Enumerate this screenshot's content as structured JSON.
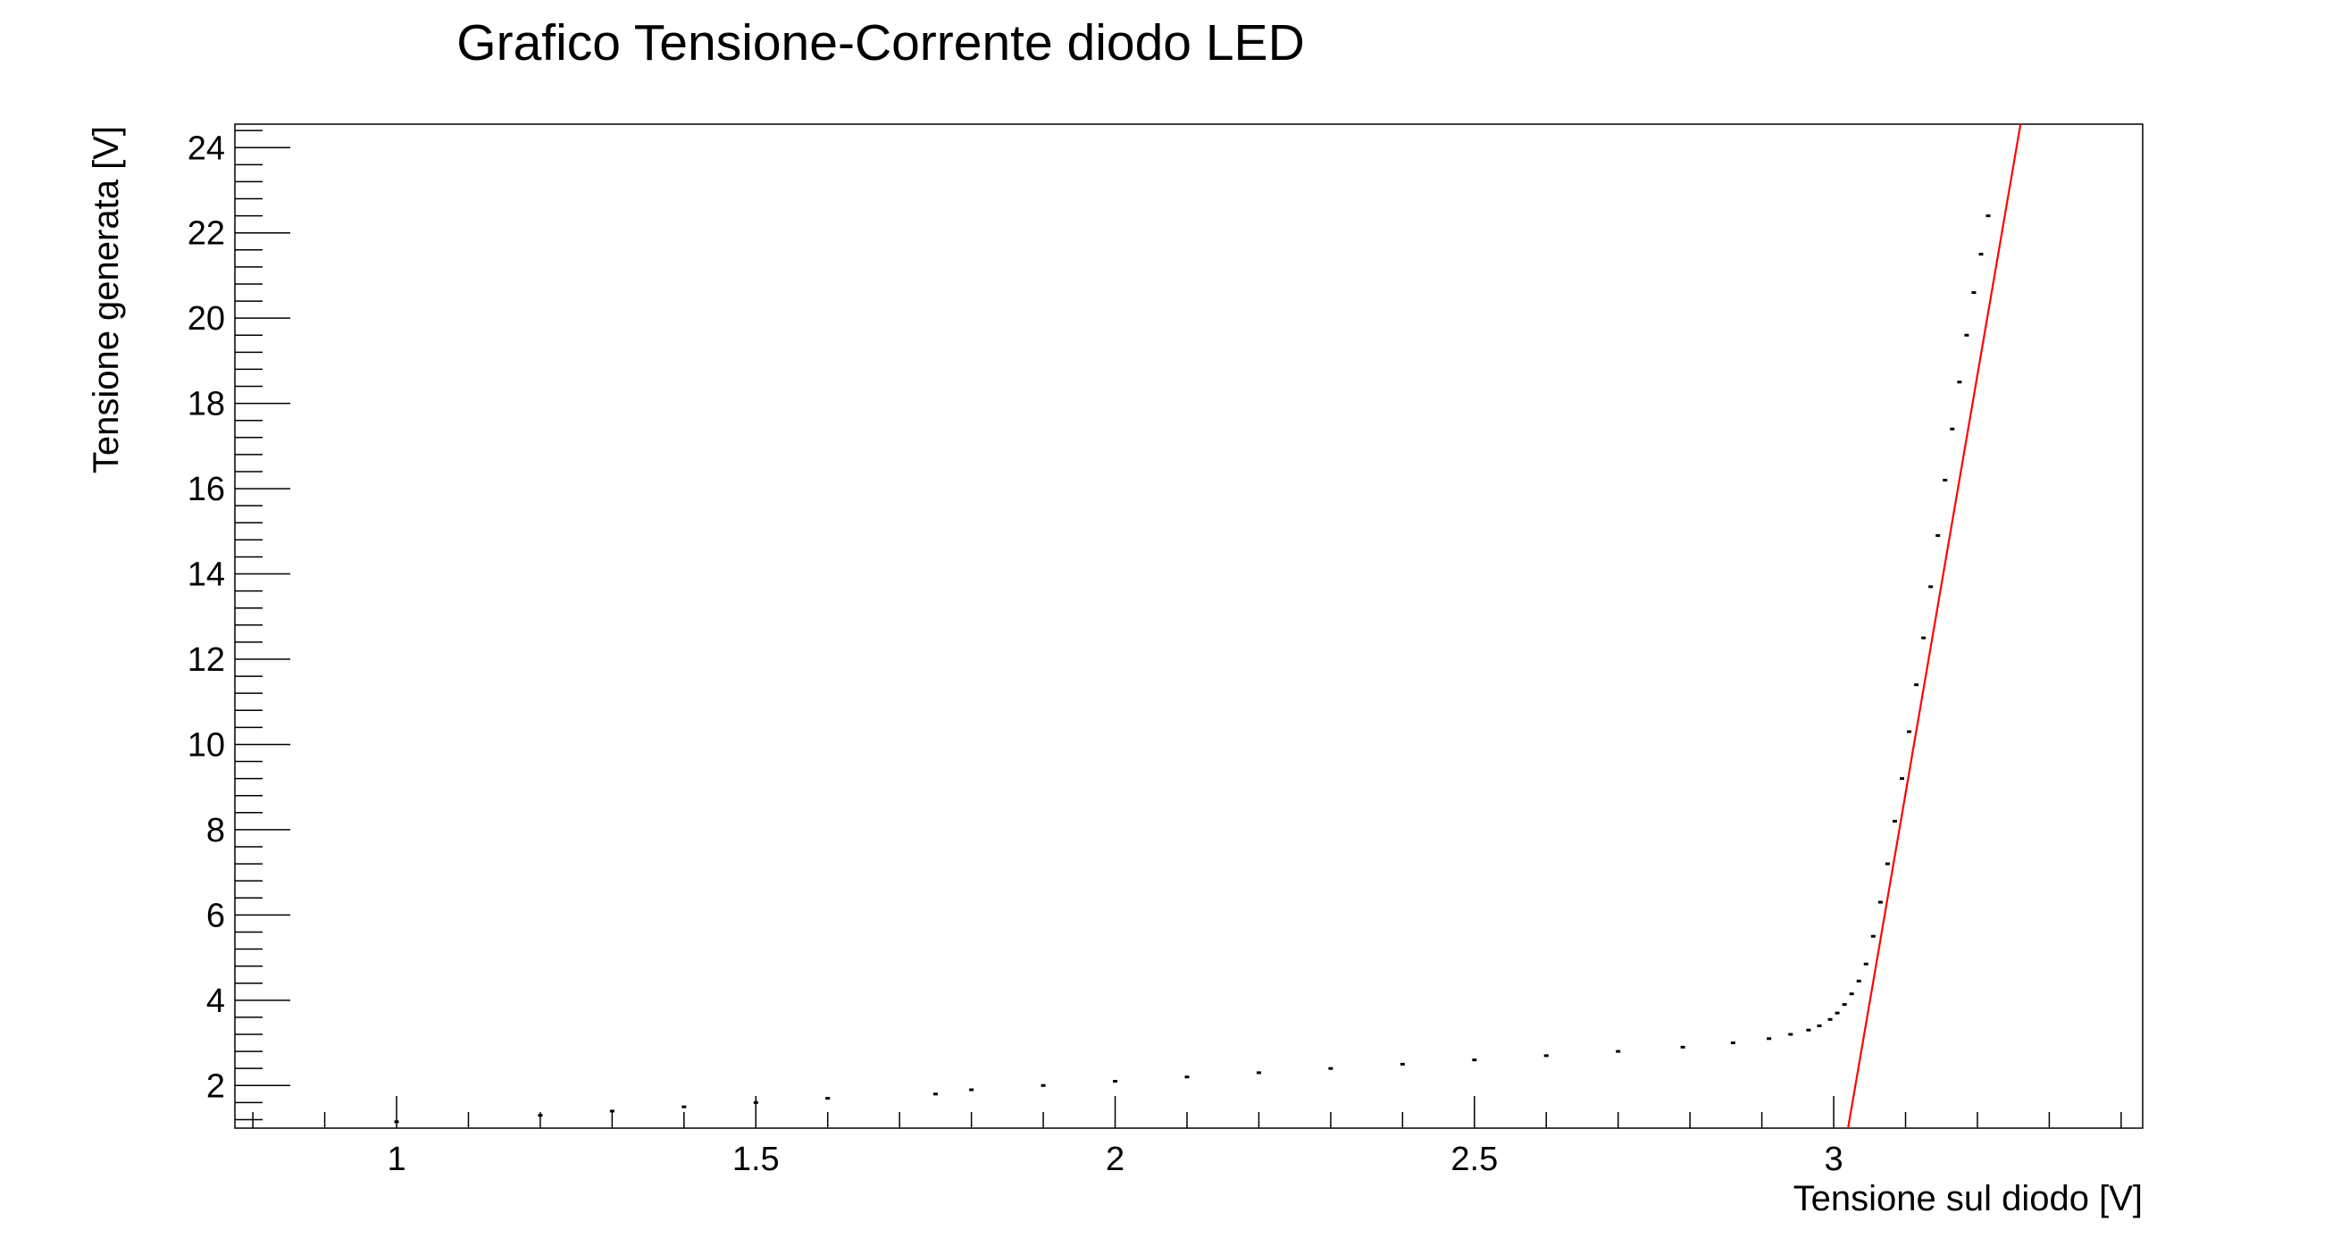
{
  "chart_data": {
    "type": "scatter",
    "title": "Grafico Tensione-Corrente diodo LED",
    "xlabel": "Tensione sul diodo [V]",
    "ylabel": "Tensione generata [V]",
    "xlim": [
      0.775,
      3.43
    ],
    "ylim": [
      1.0,
      24.55
    ],
    "x_ticks": [
      1,
      1.5,
      2,
      2.5,
      3
    ],
    "x_tick_labels": [
      "1",
      "1.5",
      "2",
      "2.5",
      "3"
    ],
    "y_ticks": [
      2,
      4,
      6,
      8,
      10,
      12,
      14,
      16,
      18,
      20,
      22,
      24
    ],
    "y_tick_labels": [
      "2",
      "4",
      "6",
      "8",
      "10",
      "12",
      "14",
      "16",
      "18",
      "20",
      "22",
      "24"
    ],
    "grid": false,
    "legend": "none",
    "series": [
      {
        "kind": "points",
        "color": "#000000",
        "x": [
          1.0,
          1.2,
          1.3,
          1.4,
          1.5,
          1.6,
          1.75,
          1.8,
          1.9,
          2.0,
          2.1,
          2.2,
          2.3,
          2.4,
          2.5,
          2.6,
          2.7,
          2.79,
          2.86,
          2.91,
          2.94,
          2.965,
          2.98,
          2.995,
          3.005,
          3.015,
          3.025,
          3.035,
          3.045,
          3.055,
          3.065,
          3.075,
          3.085,
          3.095,
          3.105,
          3.115,
          3.125,
          3.135,
          3.145,
          3.155,
          3.165,
          3.175,
          3.185,
          3.195,
          3.205,
          3.215
        ],
        "y": [
          1.15,
          1.3,
          1.4,
          1.5,
          1.6,
          1.7,
          1.8,
          1.9,
          2.0,
          2.1,
          2.2,
          2.3,
          2.4,
          2.5,
          2.6,
          2.7,
          2.8,
          2.9,
          3.0,
          3.1,
          3.2,
          3.3,
          3.4,
          3.55,
          3.7,
          3.9,
          4.15,
          4.45,
          4.85,
          5.5,
          6.3,
          7.2,
          8.2,
          9.2,
          10.3,
          11.4,
          12.5,
          13.7,
          14.9,
          16.2,
          17.4,
          18.5,
          19.6,
          20.6,
          21.5,
          22.4
        ]
      },
      {
        "kind": "fit-line",
        "color": "#ff0000",
        "x": [
          3.02,
          3.26
        ],
        "y": [
          1.0,
          24.55
        ]
      }
    ]
  }
}
